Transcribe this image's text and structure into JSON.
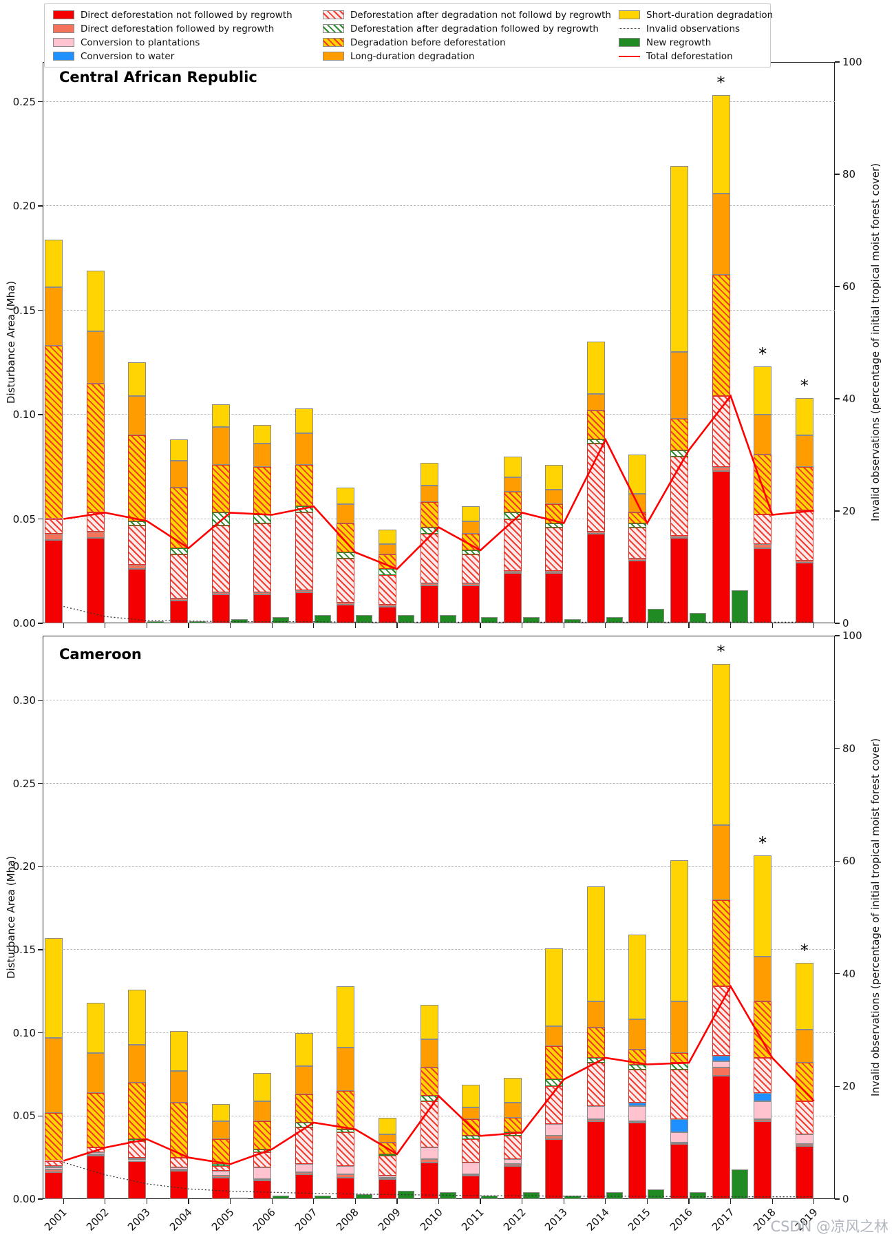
{
  "watermark": "CSDN @凉风之林",
  "axes": {
    "left_label": "Disturbance Area (Mha)",
    "right_label": "Invalid observations (percentage of initial tropical moist forest cover)",
    "right_ticks": [
      0,
      20,
      40,
      60,
      80,
      100
    ]
  },
  "legend": {
    "columns": [
      {
        "items": [
          {
            "label": "Direct deforestation not followed by regrowth",
            "swatch": "sw-red",
            "kind": "patch"
          },
          {
            "label": "Direct deforestation followed by regrowth",
            "swatch": "sw-salmon",
            "kind": "patch"
          },
          {
            "label": "Conversion to plantations",
            "swatch": "sw-pink",
            "kind": "patch"
          },
          {
            "label": "Conversion to water",
            "swatch": "sw-blue",
            "kind": "patch"
          }
        ]
      },
      {
        "items": [
          {
            "label": "Deforestation after degradation not followd by regrowth",
            "swatch": "sw-pinkh",
            "kind": "patch"
          },
          {
            "label": "Deforestation after degradation followed by regrowth",
            "swatch": "sw-greenh",
            "kind": "patch"
          },
          {
            "label": "Degradation before deforestation",
            "swatch": "sw-yellowh",
            "kind": "patch"
          },
          {
            "label": "Long-duration degradation",
            "swatch": "sw-orange",
            "kind": "patch"
          }
        ]
      },
      {
        "items": [
          {
            "label": "Short-duration degradation",
            "swatch": "sw-yellow",
            "kind": "patch"
          },
          {
            "label": "Invalid observations",
            "swatch": "dotted",
            "kind": "line"
          },
          {
            "label": "New regrowth",
            "swatch": "sw-green",
            "kind": "patch"
          },
          {
            "label": "Total deforestation",
            "swatch": "redline",
            "kind": "line"
          }
        ]
      }
    ]
  },
  "chart_data": [
    {
      "type": "bar",
      "stacked": true,
      "title": "Central African Republic",
      "xlabel": "",
      "ylabel": "Disturbance Area (Mha)",
      "y2label": "Invalid observations (percentage of initial tropical moist forest cover)",
      "ylim": [
        0,
        0.269
      ],
      "y2lim": [
        0,
        100
      ],
      "yticks": [
        0.0,
        0.05,
        0.1,
        0.15,
        0.2,
        0.25
      ],
      "grid": true,
      "legend_position": "top",
      "categories": [
        2001,
        2002,
        2003,
        2004,
        2005,
        2006,
        2007,
        2008,
        2009,
        2010,
        2011,
        2012,
        2013,
        2014,
        2015,
        2016,
        2017,
        2018,
        2019
      ],
      "starred_years": [
        2017,
        2018,
        2019
      ],
      "series": [
        {
          "name": "Direct deforestation not followed by regrowth",
          "swatch": "sw-red",
          "values": [
            0.04,
            0.041,
            0.026,
            0.011,
            0.014,
            0.014,
            0.015,
            0.009,
            0.008,
            0.018,
            0.018,
            0.024,
            0.024,
            0.043,
            0.03,
            0.041,
            0.073,
            0.036,
            0.029
          ]
        },
        {
          "name": "Direct deforestation followed by regrowth",
          "swatch": "sw-salmon",
          "values": [
            0.003,
            0.003,
            0.002,
            0.001,
            0.001,
            0.001,
            0.001,
            0.001,
            0.001,
            0.001,
            0.001,
            0.001,
            0.001,
            0.001,
            0.001,
            0.001,
            0.002,
            0.002,
            0.001
          ]
        },
        {
          "name": "Conversion to plantations",
          "swatch": "sw-pink",
          "values": [
            0,
            0,
            0,
            0,
            0,
            0,
            0,
            0,
            0,
            0,
            0,
            0,
            0,
            0,
            0,
            0,
            0,
            0,
            0
          ]
        },
        {
          "name": "Conversion to water",
          "swatch": "sw-blue",
          "values": [
            0,
            0,
            0,
            0,
            0,
            0,
            0,
            0,
            0,
            0,
            0,
            0,
            0,
            0,
            0,
            0,
            0,
            0,
            0
          ]
        },
        {
          "name": "Deforestation after degradation not followd by regrowth",
          "swatch": "sw-pinkh",
          "values": [
            0.007,
            0.009,
            0.019,
            0.021,
            0.032,
            0.033,
            0.037,
            0.021,
            0.014,
            0.024,
            0.014,
            0.025,
            0.021,
            0.042,
            0.015,
            0.038,
            0.034,
            0.014,
            0.024
          ]
        },
        {
          "name": "Deforestation after degradation followed by regrowth",
          "swatch": "sw-greenh",
          "values": [
            0.0,
            0.0,
            0.002,
            0.003,
            0.006,
            0.004,
            0.003,
            0.003,
            0.003,
            0.003,
            0.002,
            0.003,
            0.002,
            0.002,
            0.002,
            0.003,
            0.0,
            0.0,
            0.0
          ]
        },
        {
          "name": "Degradation before deforestation",
          "swatch": "sw-yellowh",
          "values": [
            0.083,
            0.062,
            0.041,
            0.029,
            0.023,
            0.023,
            0.02,
            0.014,
            0.007,
            0.012,
            0.008,
            0.01,
            0.009,
            0.014,
            0.005,
            0.015,
            0.058,
            0.029,
            0.021
          ]
        },
        {
          "name": "Long-duration degradation",
          "swatch": "sw-orange",
          "values": [
            0.028,
            0.025,
            0.019,
            0.013,
            0.018,
            0.011,
            0.015,
            0.009,
            0.005,
            0.008,
            0.006,
            0.007,
            0.007,
            0.008,
            0.009,
            0.032,
            0.039,
            0.019,
            0.015
          ]
        },
        {
          "name": "Short-duration degradation",
          "swatch": "sw-yellow",
          "values": [
            0.023,
            0.029,
            0.016,
            0.01,
            0.011,
            0.009,
            0.012,
            0.008,
            0.007,
            0.011,
            0.007,
            0.01,
            0.012,
            0.025,
            0.019,
            0.089,
            0.047,
            0.023,
            0.018
          ]
        }
      ],
      "new_regrowth": {
        "name": "New regrowth",
        "swatch": "sw-green",
        "values": [
          0,
          0,
          0.001,
          0.001,
          0.002,
          0.003,
          0.004,
          0.004,
          0.004,
          0.004,
          0.003,
          0.003,
          0.002,
          0.003,
          0.007,
          0.005,
          0.016,
          0,
          0
        ]
      },
      "total_deforestation_line": {
        "name": "Total deforestation",
        "color": "#ff0000",
        "values": [
          0.05,
          0.053,
          0.049,
          0.036,
          0.053,
          0.052,
          0.056,
          0.034,
          0.026,
          0.046,
          0.035,
          0.053,
          0.048,
          0.088,
          0.048,
          0.083,
          0.109,
          0.052,
          0.054
        ]
      },
      "invalid_observations_pct": {
        "name": "Invalid observations",
        "axis": "right",
        "values": [
          3.0,
          1.2,
          0.5,
          0.4,
          0.3,
          0.3,
          0.3,
          0.2,
          0.2,
          0.2,
          0.2,
          0.2,
          0.2,
          0.2,
          0.2,
          0.2,
          0.2,
          0.2,
          0.2
        ]
      }
    },
    {
      "type": "bar",
      "stacked": true,
      "title": "Cameroon",
      "xlabel": "",
      "ylabel": "Disturbance Area (Mha)",
      "y2label": "Invalid observations (percentage of initial tropical moist forest cover)",
      "ylim": [
        0,
        0.339
      ],
      "y2lim": [
        0,
        100
      ],
      "yticks": [
        0.0,
        0.05,
        0.1,
        0.15,
        0.2,
        0.25,
        0.3
      ],
      "grid": true,
      "legend_position": "top",
      "categories": [
        2001,
        2002,
        2003,
        2004,
        2005,
        2006,
        2007,
        2008,
        2009,
        2010,
        2011,
        2012,
        2013,
        2014,
        2015,
        2016,
        2017,
        2018,
        2019
      ],
      "starred_years": [
        2017,
        2018,
        2019
      ],
      "series": [
        {
          "name": "Direct deforestation not followed by regrowth",
          "swatch": "sw-red",
          "values": [
            0.016,
            0.026,
            0.023,
            0.017,
            0.013,
            0.011,
            0.015,
            0.013,
            0.012,
            0.022,
            0.014,
            0.02,
            0.036,
            0.047,
            0.046,
            0.033,
            0.074,
            0.047,
            0.032
          ]
        },
        {
          "name": "Direct deforestation followed by regrowth",
          "swatch": "sw-salmon",
          "values": [
            0.002,
            0.001,
            0.001,
            0.001,
            0.001,
            0.001,
            0.001,
            0.002,
            0.001,
            0.002,
            0.001,
            0.001,
            0.002,
            0.001,
            0.001,
            0.001,
            0.005,
            0.001,
            0.001
          ]
        },
        {
          "name": "Conversion to plantations",
          "swatch": "sw-pink",
          "values": [
            0.001,
            0.001,
            0.001,
            0.001,
            0.003,
            0.007,
            0.005,
            0.005,
            0.001,
            0.007,
            0.007,
            0.003,
            0.007,
            0.008,
            0.009,
            0.006,
            0.004,
            0.011,
            0.006
          ]
        },
        {
          "name": "Conversion to water",
          "swatch": "sw-blue",
          "values": [
            0.001,
            0,
            0,
            0,
            0,
            0,
            0,
            0,
            0,
            0,
            0,
            0,
            0,
            0,
            0.002,
            0.008,
            0.003,
            0.005,
            0
          ]
        },
        {
          "name": "Deforestation after degradation not followd by regrowth",
          "swatch": "sw-pinkh",
          "values": [
            0.003,
            0.003,
            0.01,
            0.006,
            0.003,
            0.009,
            0.022,
            0.02,
            0.012,
            0.028,
            0.014,
            0.014,
            0.023,
            0.026,
            0.02,
            0.03,
            0.042,
            0.021,
            0.02
          ]
        },
        {
          "name": "Deforestation after degradation followed by regrowth",
          "swatch": "sw-greenh",
          "values": [
            0.0,
            0.0,
            0.001,
            0.0,
            0.001,
            0.002,
            0.003,
            0.002,
            0.001,
            0.003,
            0.002,
            0.002,
            0.004,
            0.003,
            0.003,
            0.004,
            0.0,
            0.0,
            0.0
          ]
        },
        {
          "name": "Degradation before deforestation",
          "swatch": "sw-yellowh",
          "values": [
            0.029,
            0.033,
            0.034,
            0.033,
            0.015,
            0.017,
            0.017,
            0.023,
            0.007,
            0.017,
            0.01,
            0.009,
            0.02,
            0.018,
            0.009,
            0.006,
            0.052,
            0.034,
            0.023
          ]
        },
        {
          "name": "Long-duration degradation",
          "swatch": "sw-orange",
          "values": [
            0.045,
            0.024,
            0.023,
            0.019,
            0.011,
            0.012,
            0.017,
            0.026,
            0.005,
            0.017,
            0.007,
            0.009,
            0.012,
            0.016,
            0.018,
            0.031,
            0.045,
            0.027,
            0.02
          ]
        },
        {
          "name": "Short-duration degradation",
          "swatch": "sw-yellow",
          "values": [
            0.06,
            0.03,
            0.033,
            0.024,
            0.01,
            0.017,
            0.02,
            0.037,
            0.01,
            0.021,
            0.014,
            0.015,
            0.047,
            0.069,
            0.051,
            0.085,
            0.097,
            0.061,
            0.04
          ]
        }
      ],
      "new_regrowth": {
        "name": "New regrowth",
        "swatch": "sw-green",
        "values": [
          0,
          0,
          0,
          0,
          0.001,
          0.002,
          0.002,
          0.003,
          0.005,
          0.004,
          0.002,
          0.004,
          0.002,
          0.004,
          0.006,
          0.004,
          0.018,
          0,
          0
        ]
      },
      "total_deforestation_line": {
        "name": "Total deforestation",
        "color": "#ff0000",
        "values": [
          0.023,
          0.031,
          0.036,
          0.025,
          0.021,
          0.03,
          0.046,
          0.042,
          0.027,
          0.062,
          0.038,
          0.04,
          0.072,
          0.085,
          0.081,
          0.082,
          0.128,
          0.085,
          0.059
        ]
      },
      "invalid_observations_pct": {
        "name": "Invalid observations",
        "axis": "right",
        "values": [
          6.5,
          4.3,
          2.7,
          1.8,
          1.4,
          1.2,
          1.0,
          0.9,
          0.8,
          0.7,
          0.6,
          0.6,
          0.5,
          0.5,
          0.5,
          0.4,
          0.4,
          0.4,
          0.4
        ]
      }
    }
  ]
}
